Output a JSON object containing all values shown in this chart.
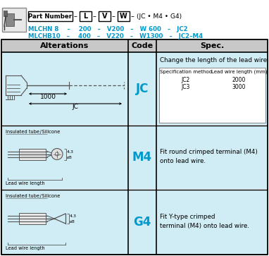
{
  "bg_color": "#ffffff",
  "header_bg": "#c8c8c8",
  "cell_bg": "#d0ecf4",
  "border_color": "#000000",
  "cyan_color": "#0099cc",
  "col_headers": [
    "Alterations",
    "Code",
    "Spec."
  ],
  "jc_spec": "Change the length of the lead wire.",
  "jc_sub_h1": "Specification method",
  "jc_sub_h2": "Lead wire length (mm)",
  "jc_rows": [
    [
      "JC2",
      "2000"
    ],
    [
      "JC3",
      "3000"
    ]
  ],
  "m4_spec1": "Fit round crimped terminal (M4)",
  "m4_spec2": "onto lead wire.",
  "g4_spec1": "Fit Y-type crimped",
  "g4_spec2": "terminal (M4) onto lead wire.",
  "pn_label": "Part Number",
  "boxes": [
    "L",
    "V",
    "W"
  ],
  "suffix": "(JC • M4 • G4)",
  "ex1_parts": [
    "MLCHN 8",
    "–",
    "200",
    "–",
    "V200",
    "–",
    "W 600",
    "–",
    "JC2"
  ],
  "ex2_parts": [
    "MLCHB10",
    "–",
    "400",
    "–",
    "V220",
    "–",
    "W1300",
    "–",
    "JC2–M4"
  ]
}
